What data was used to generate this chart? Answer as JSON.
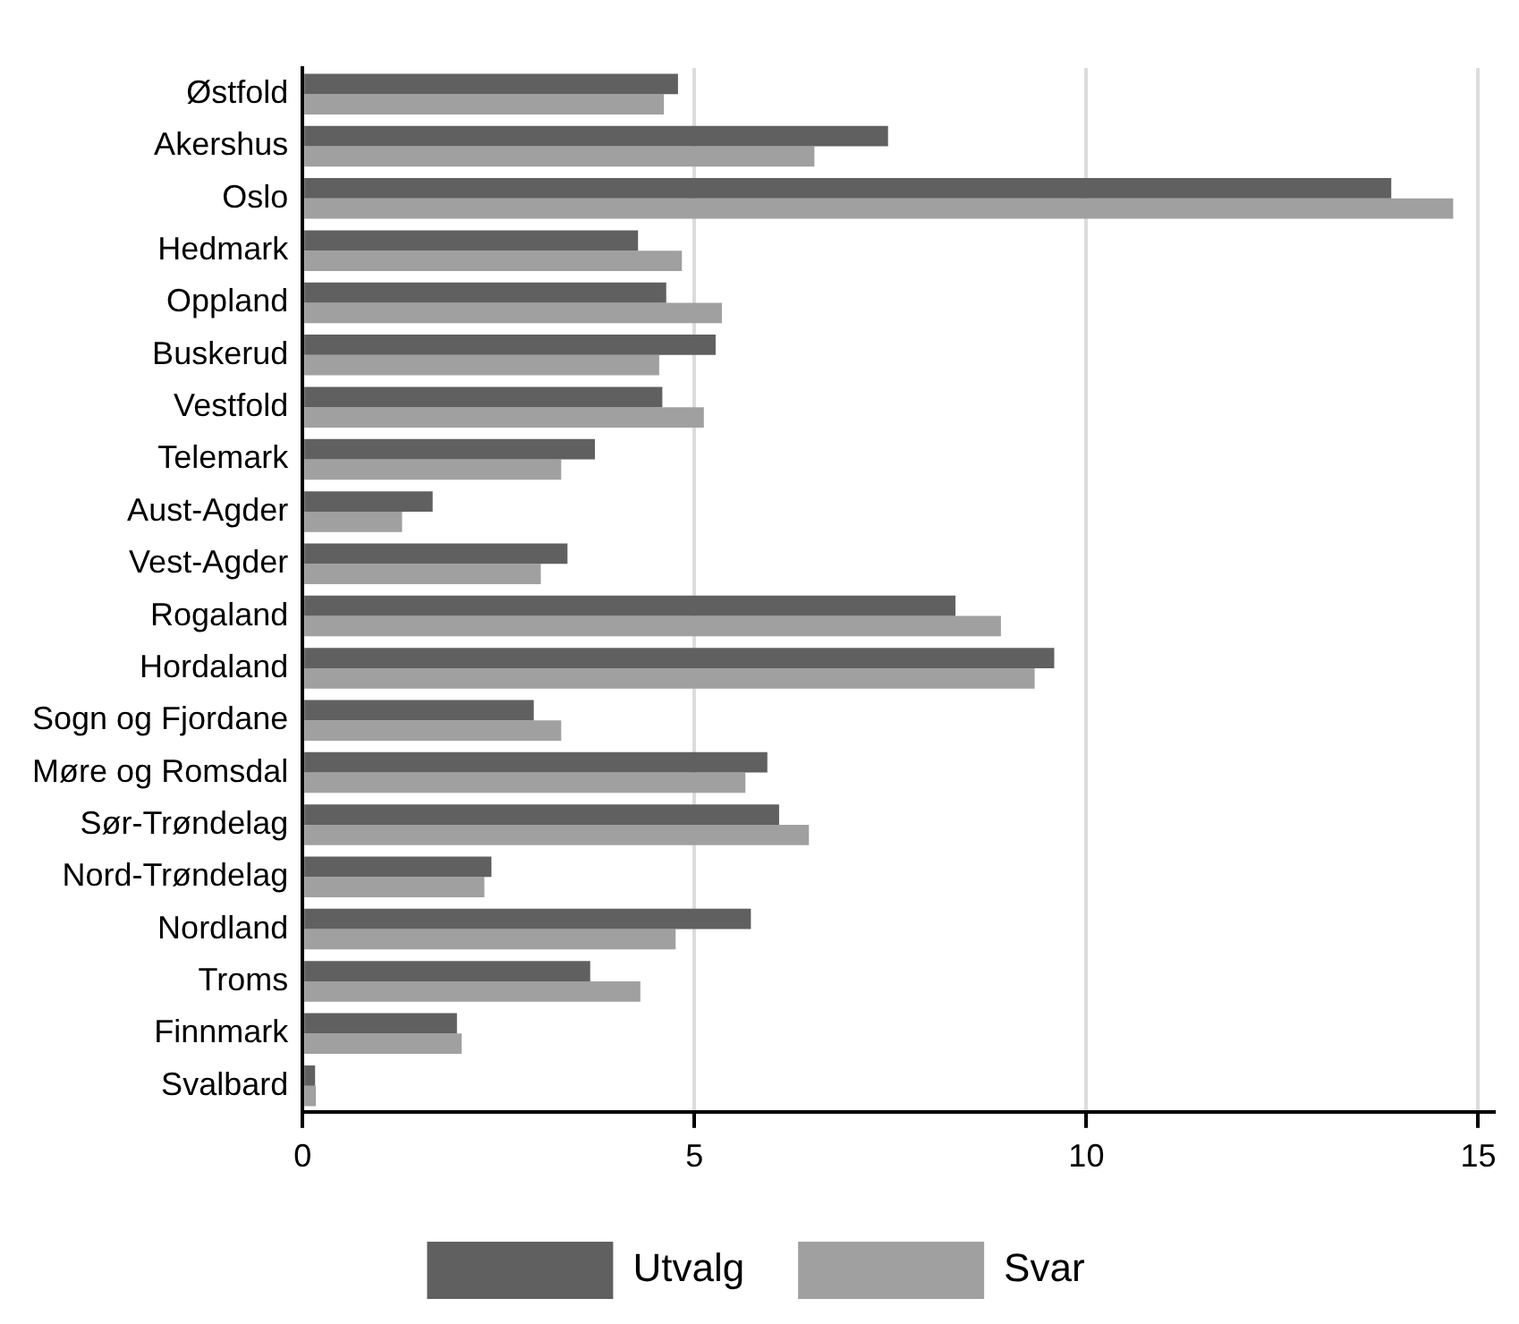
{
  "chart_data": {
    "type": "bar",
    "orientation": "horizontal",
    "categories": [
      "Østfold",
      "Akershus",
      "Oslo",
      "Hedmark",
      "Oppland",
      "Buskerud",
      "Vestfold",
      "Telemark",
      "Aust-Agder",
      "Vest-Agder",
      "Rogaland",
      "Hordaland",
      "Sogn og Fjordane",
      "Møre og Romsdal",
      "Sør-Trøndelag",
      "Nord-Trøndelag",
      "Nordland",
      "Troms",
      "Finnmark",
      "Svalbard"
    ],
    "series": [
      {
        "name": "Utvalg",
        "color": "#606060",
        "values": [
          4.79,
          7.47,
          13.89,
          4.28,
          4.64,
          5.27,
          4.59,
          3.73,
          1.66,
          3.38,
          8.33,
          9.59,
          2.95,
          5.93,
          6.08,
          2.41,
          5.72,
          3.67,
          1.97,
          0.16
        ]
      },
      {
        "name": "Svar",
        "color": "#a0a0a0",
        "values": [
          4.61,
          6.53,
          14.68,
          4.84,
          5.35,
          4.55,
          5.12,
          3.3,
          1.27,
          3.04,
          8.91,
          9.34,
          3.3,
          5.65,
          6.46,
          2.32,
          4.76,
          4.31,
          2.03,
          0.17
        ]
      }
    ],
    "xlim": [
      0,
      15.2
    ],
    "xticks": [
      0,
      5,
      10,
      15
    ],
    "grid": "x",
    "legend": "bottom"
  }
}
